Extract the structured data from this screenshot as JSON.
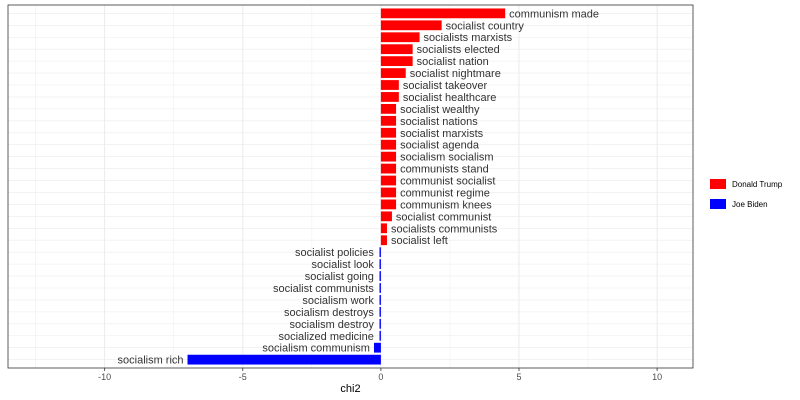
{
  "chart_data": {
    "type": "bar",
    "orientation": "horizontal",
    "xlabel": "chi2",
    "xlim": [
      -13.5,
      11.3
    ],
    "xticks": [
      -10,
      -5,
      0,
      5,
      10
    ],
    "xtick_labels": [
      "-10",
      "-5",
      "0",
      "5",
      "10"
    ],
    "grid": true,
    "legend_position": "right",
    "series": [
      {
        "name": "Donald Trump",
        "color": "#ff0000"
      },
      {
        "name": "Joe Biden",
        "color": "#0000ff"
      }
    ],
    "bars": [
      {
        "label": "communism made",
        "value": 4.5,
        "series": "Donald Trump"
      },
      {
        "label": "socialist country",
        "value": 2.2,
        "series": "Donald Trump"
      },
      {
        "label": "socialists marxists",
        "value": 1.4,
        "series": "Donald Trump"
      },
      {
        "label": "socialists elected",
        "value": 1.15,
        "series": "Donald Trump"
      },
      {
        "label": "socialist nation",
        "value": 1.15,
        "series": "Donald Trump"
      },
      {
        "label": "socialist nightmare",
        "value": 0.9,
        "series": "Donald Trump"
      },
      {
        "label": "socialist takeover",
        "value": 0.65,
        "series": "Donald Trump"
      },
      {
        "label": "socialist healthcare",
        "value": 0.65,
        "series": "Donald Trump"
      },
      {
        "label": "socialist wealthy",
        "value": 0.55,
        "series": "Donald Trump"
      },
      {
        "label": "socialist nations",
        "value": 0.55,
        "series": "Donald Trump"
      },
      {
        "label": "socialist marxists",
        "value": 0.55,
        "series": "Donald Trump"
      },
      {
        "label": "socialist agenda",
        "value": 0.55,
        "series": "Donald Trump"
      },
      {
        "label": "socialism socialism",
        "value": 0.55,
        "series": "Donald Trump"
      },
      {
        "label": "communists stand",
        "value": 0.55,
        "series": "Donald Trump"
      },
      {
        "label": "communist socialist",
        "value": 0.55,
        "series": "Donald Trump"
      },
      {
        "label": "communist regime",
        "value": 0.55,
        "series": "Donald Trump"
      },
      {
        "label": "communism knees",
        "value": 0.55,
        "series": "Donald Trump"
      },
      {
        "label": "socialist communist",
        "value": 0.4,
        "series": "Donald Trump"
      },
      {
        "label": "socialists communists",
        "value": 0.22,
        "series": "Donald Trump"
      },
      {
        "label": "socialist left",
        "value": 0.22,
        "series": "Donald Trump"
      },
      {
        "label": "socialist policies",
        "value": -0.05,
        "series": "Joe Biden"
      },
      {
        "label": "socialist look",
        "value": -0.05,
        "series": "Joe Biden"
      },
      {
        "label": "socialist going",
        "value": -0.05,
        "series": "Joe Biden"
      },
      {
        "label": "socialist communists",
        "value": -0.05,
        "series": "Joe Biden"
      },
      {
        "label": "socialism work",
        "value": -0.05,
        "series": "Joe Biden"
      },
      {
        "label": "socialism destroys",
        "value": -0.05,
        "series": "Joe Biden"
      },
      {
        "label": "socialism destroy",
        "value": -0.05,
        "series": "Joe Biden"
      },
      {
        "label": "socialized medicine",
        "value": -0.05,
        "series": "Joe Biden"
      },
      {
        "label": "socialism communism",
        "value": -0.25,
        "series": "Joe Biden"
      },
      {
        "label": "socialism rich",
        "value": -7.0,
        "series": "Joe Biden"
      }
    ]
  }
}
